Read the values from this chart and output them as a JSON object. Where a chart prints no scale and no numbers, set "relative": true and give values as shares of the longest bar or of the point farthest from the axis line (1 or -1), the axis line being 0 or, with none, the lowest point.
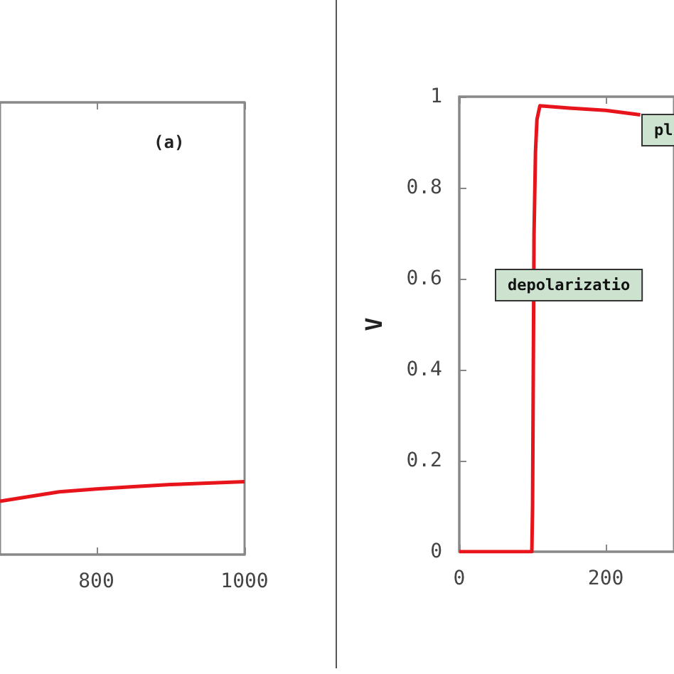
{
  "chart_data": [
    {
      "type": "line",
      "annotations": [
        "(a)"
      ],
      "x": [
        670,
        700,
        750,
        800,
        850,
        900,
        950,
        1000
      ],
      "series": [
        {
          "color": "#e8141b",
          "values": [
            0.73,
            0.78,
            0.86,
            0.9,
            0.93,
            0.96,
            0.98,
            1
          ]
        }
      ],
      "relative": true,
      "xlim": [
        670,
        1000
      ],
      "xticks": [
        800,
        1000
      ],
      "marker": "none",
      "grid": false
    },
    {
      "type": "line",
      "ylabel": "V",
      "x": [
        0,
        99,
        100,
        101,
        102,
        104,
        106,
        110,
        150,
        200,
        247
      ],
      "series": [
        {
          "color": "#e8141b",
          "values": [
            0,
            0,
            0.1,
            0.4,
            0.7,
            0.88,
            0.95,
            0.98,
            0.975,
            0.97,
            0.96
          ]
        }
      ],
      "xlim": [
        0,
        293
      ],
      "ylim": [
        0,
        1
      ],
      "xticks": [
        0,
        200
      ],
      "yticks": [
        0,
        0.2,
        0.4,
        0.6,
        0.8,
        1
      ],
      "marker": "none",
      "grid": false,
      "annotations": [
        "depolarizatio",
        "pl"
      ]
    }
  ]
}
